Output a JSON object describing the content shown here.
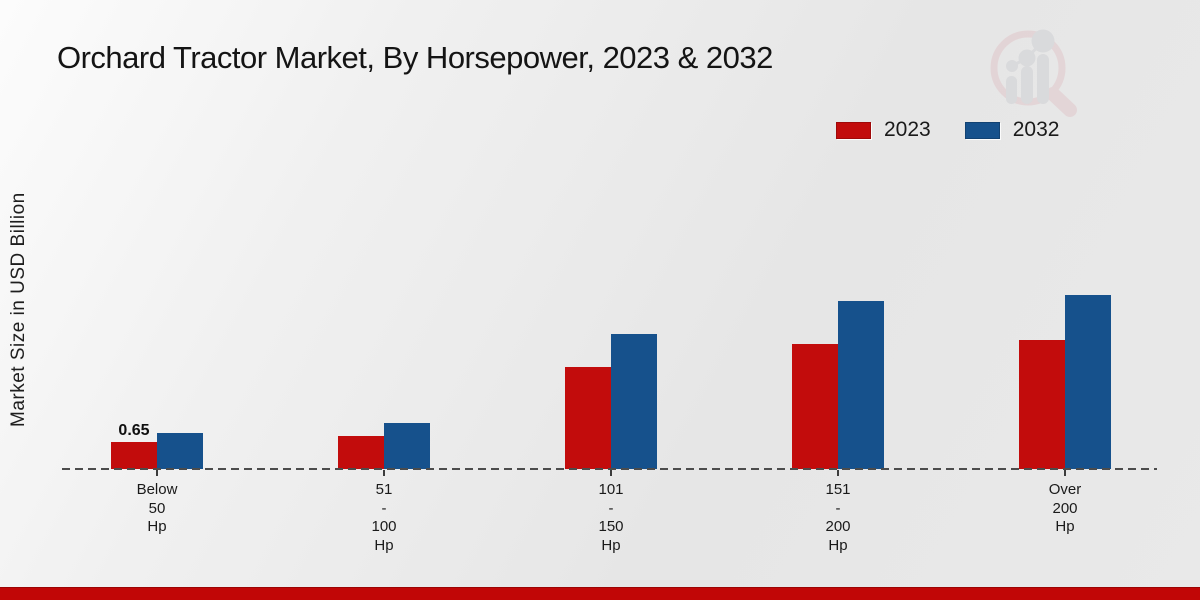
{
  "title": "Orchard Tractor Market, By Horsepower, 2023 & 2032",
  "y_axis_label": "Market Size in USD Billion",
  "legend": {
    "items": [
      {
        "label": "2023",
        "color": "#c20c0c"
      },
      {
        "label": "2032",
        "color": "#16518c"
      }
    ],
    "position": "top-right"
  },
  "watermark_icon": "market-research-future-logo",
  "colors": {
    "series_2023": "#c20c0c",
    "series_2032": "#16518c",
    "background": "#e9e9e9",
    "bottom_strip": "#c10606",
    "baseline_dash": "#4c4c4c"
  },
  "chart_data": {
    "type": "bar",
    "title": "Orchard Tractor Market, By Horsepower, 2023 & 2032",
    "ylabel": "Market Size in USD Billion",
    "xlabel": "",
    "categories": [
      "Below 50 Hp",
      "51 - 100 Hp",
      "101 - 150 Hp",
      "151 - 200 Hp",
      "Over 200 Hp"
    ],
    "category_lines": [
      [
        "Below",
        "50",
        "Hp"
      ],
      [
        "51",
        "-",
        "100",
        "Hp"
      ],
      [
        "101",
        "-",
        "150",
        "Hp"
      ],
      [
        "151",
        "-",
        "200",
        "Hp"
      ],
      [
        "Over",
        "200",
        "Hp"
      ]
    ],
    "series": [
      {
        "name": "2023",
        "color": "#c20c0c",
        "values": [
          0.65,
          0.8,
          2.45,
          3.0,
          3.1
        ],
        "data_labels": [
          "0.65",
          "",
          "",
          "",
          ""
        ]
      },
      {
        "name": "2032",
        "color": "#16518c",
        "values": [
          0.87,
          1.1,
          3.25,
          4.05,
          4.2
        ],
        "data_labels": [
          "",
          "",
          "",
          "",
          ""
        ]
      }
    ],
    "ylim": [
      0,
      4.5
    ],
    "grid": false,
    "axis_ticks_visible": false,
    "baseline_style": "dashed",
    "legend_position": "top-right"
  }
}
